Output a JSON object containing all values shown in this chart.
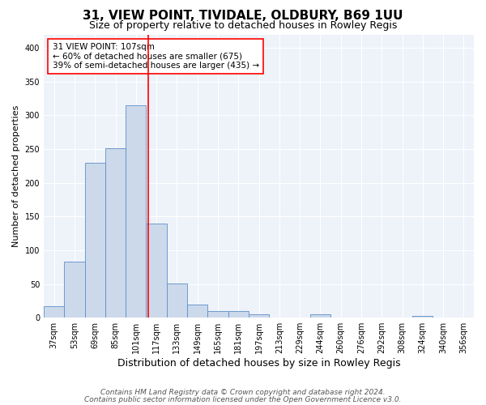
{
  "title": "31, VIEW POINT, TIVIDALE, OLDBURY, B69 1UU",
  "subtitle": "Size of property relative to detached houses in Rowley Regis",
  "xlabel": "Distribution of detached houses by size in Rowley Regis",
  "ylabel": "Number of detached properties",
  "footer_line1": "Contains HM Land Registry data © Crown copyright and database right 2024.",
  "footer_line2": "Contains public sector information licensed under the Open Government Licence v3.0.",
  "bar_color": "#ccd9ea",
  "bar_edge_color": "#5b8fc9",
  "categories": [
    "37sqm",
    "53sqm",
    "69sqm",
    "85sqm",
    "101sqm",
    "117sqm",
    "133sqm",
    "149sqm",
    "165sqm",
    "181sqm",
    "197sqm",
    "213sqm",
    "229sqm",
    "244sqm",
    "260sqm",
    "276sqm",
    "292sqm",
    "308sqm",
    "324sqm",
    "340sqm",
    "356sqm"
  ],
  "values": [
    17,
    83,
    230,
    251,
    315,
    140,
    51,
    20,
    10,
    10,
    5,
    0,
    0,
    5,
    0,
    0,
    0,
    0,
    3,
    0,
    0
  ],
  "red_line_x": 4.62,
  "annotation_text": "31 VIEW POINT: 107sqm\n← 60% of detached houses are smaller (675)\n39% of semi-detached houses are larger (435) →",
  "ylim": [
    0,
    420
  ],
  "yticks": [
    0,
    50,
    100,
    150,
    200,
    250,
    300,
    350,
    400
  ],
  "background_color": "#eef2f9",
  "grid_color": "#ffffff",
  "title_fontsize": 11,
  "subtitle_fontsize": 9,
  "ylabel_fontsize": 8,
  "xlabel_fontsize": 9,
  "tick_fontsize": 7,
  "annotation_fontsize": 7.5,
  "footer_fontsize": 6.5
}
